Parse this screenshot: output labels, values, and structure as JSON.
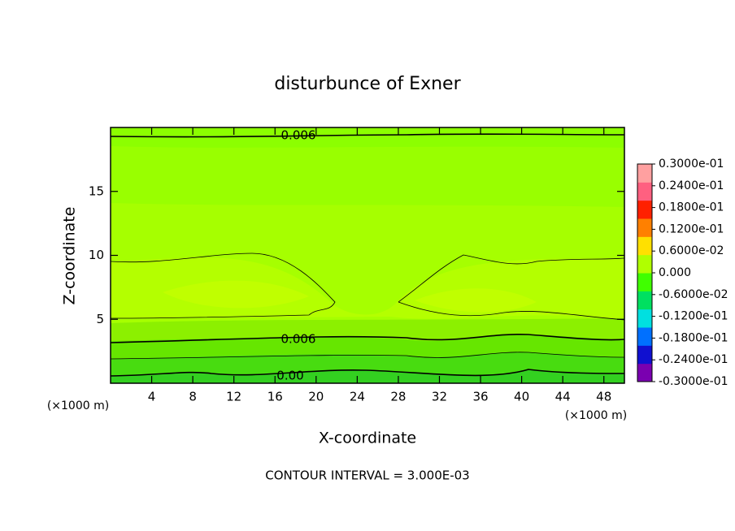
{
  "chart_data": {
    "type": "contour",
    "title": "disturbunce of Exner",
    "x_label": "X-coordinate",
    "y_label": "Z-coordinate",
    "x_unit": "(×1000 m)",
    "y_unit": "(×1000 m)",
    "footer": "CONTOUR INTERVAL = 3.000E-03",
    "xlim": [
      0,
      50
    ],
    "ylim": [
      0,
      20
    ],
    "xticks": [
      4,
      8,
      12,
      16,
      20,
      24,
      28,
      32,
      36,
      40,
      44,
      48
    ],
    "yticks": [
      5,
      10,
      15
    ],
    "contour_labels": [
      0.006,
      0.006,
      {
        "value": 0,
        "label": "0.00"
      }
    ],
    "colorbar": {
      "lim": [
        -0.03,
        0.03
      ],
      "ticks": [
        {
          "value": 0.03,
          "label": "0.3000e-01"
        },
        {
          "value": 0.024,
          "label": "0.2400e-01"
        },
        {
          "value": 0.018,
          "label": "0.1800e-01"
        },
        {
          "value": 0.012,
          "label": "0.1200e-01"
        },
        {
          "value": 0.006,
          "label": "0.6000e-02"
        },
        {
          "value": 0,
          "label": "0.000"
        },
        {
          "value": -0.006,
          "label": "-0.6000e-02"
        },
        {
          "value": -0.012,
          "label": "-0.1200e-01"
        },
        {
          "value": -0.018,
          "label": "-0.1800e-01"
        },
        {
          "value": -0.024,
          "label": "-0.2400e-01"
        },
        {
          "value": -0.03,
          "label": "-0.3000e-01"
        }
      ],
      "colors": [
        "#7a00b0",
        "#1010d0",
        "#0070ff",
        "#00e0e0",
        "#00e060",
        "#40ff00",
        "#b0ff00",
        "#ffe000",
        "#ff8000",
        "#ff2000",
        "#ff6080",
        "#ffa0a0"
      ]
    }
  }
}
